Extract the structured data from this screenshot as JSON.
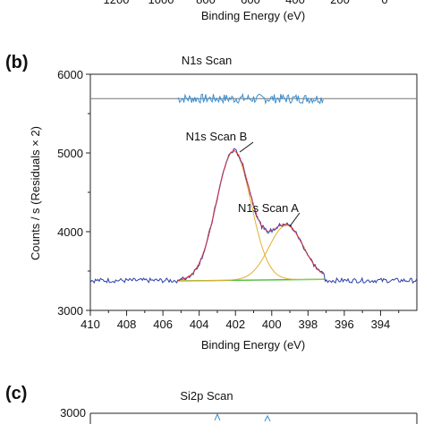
{
  "top_partial": {
    "xlabel": "Binding Energy (eV)",
    "tick_labels": [
      "1200",
      "1000",
      "800",
      "600",
      "400",
      "200",
      "0"
    ]
  },
  "panel_b": {
    "panel_label": "(b)",
    "title": "N1s Scan",
    "xlabel": "Binding Energy (eV)",
    "ylabel": "Counts / s  (Residuals × 2)"
  },
  "panel_c": {
    "panel_label": "(c)",
    "title": "Si2p Scan",
    "ytick_top": "3000"
  },
  "colors": {
    "spectrum": "#2b3fa8",
    "envelope": "#e0304a",
    "component_a": "#e0b030",
    "component_b": "#e0b030",
    "background": "#4bbf3a",
    "residual": "#3b8fd0",
    "residual_ref": "#777777"
  },
  "chart_data": [
    {
      "type": "line",
      "title": "N1s Scan",
      "xlabel": "Binding Energy (eV)",
      "ylabel": "Counts / s  (Residuals × 2)",
      "x_reversed": true,
      "xlim": [
        410,
        392
      ],
      "ylim": [
        3000,
        6000
      ],
      "xticks": [
        410,
        408,
        406,
        404,
        402,
        400,
        398,
        396,
        394
      ],
      "yticks": [
        3000,
        4000,
        5000,
        6000
      ],
      "annotations": [
        {
          "text": "N1s Scan B",
          "x": 402.1,
          "y": 5020
        },
        {
          "text": "N1s Scan A",
          "x": 399.2,
          "y": 4080
        }
      ],
      "series": [
        {
          "name": "N1s Scan B",
          "type": "gaussian",
          "center": 402.1,
          "height": 1640,
          "sigma": 0.95
        },
        {
          "name": "N1s Scan A",
          "type": "gaussian",
          "center": 399.2,
          "height": 690,
          "sigma": 0.95
        },
        {
          "type": "baseline",
          "x": [
            405.2,
            397.1
          ],
          "y": [
            3375,
            3395
          ]
        },
        {
          "type": "residual",
          "x_range": [
            405.2,
            397.1
          ],
          "y_center": 5690,
          "amplitude": 60
        },
        {
          "type": "spectrum",
          "x_range": [
            410,
            392
          ],
          "y_baseline": 3380,
          "noise": 30
        }
      ]
    }
  ]
}
